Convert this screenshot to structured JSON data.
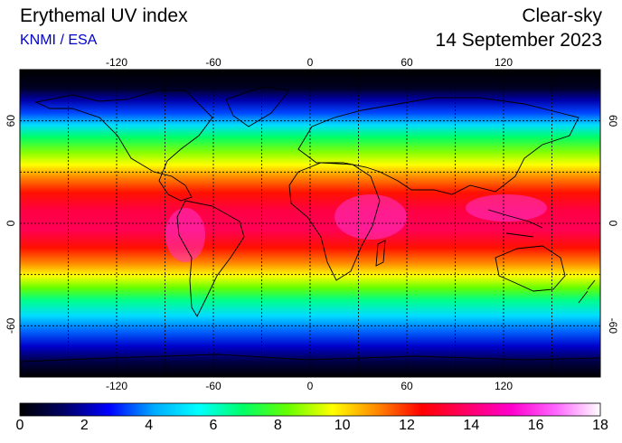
{
  "header": {
    "title": "Erythemal UV index",
    "subtitle": "KNMI / ESA",
    "subtitle_color": "#0000cc",
    "mode": "Clear-sky",
    "date": "14 September 2023"
  },
  "map": {
    "projection": "equirectangular",
    "lon_range": [
      -180,
      180
    ],
    "lat_range": [
      -90,
      90
    ],
    "lon_ticks": [
      "-120",
      "-60",
      "0",
      "60",
      "120"
    ],
    "lat_ticks": [
      "60",
      "0",
      "-60"
    ],
    "grid": "dashed every 30 degrees"
  },
  "colorbar": {
    "min": 0,
    "max": 18,
    "labels": [
      "0",
      "2",
      "4",
      "6",
      "8",
      "10",
      "12",
      "14",
      "16",
      "18"
    ],
    "stops": [
      "#000000",
      "#000066",
      "#0000ff",
      "#00aaff",
      "#00ffff",
      "#00ff66",
      "#66ff00",
      "#ffff00",
      "#ff8800",
      "#ff0000",
      "#ff0066",
      "#ff00cc",
      "#ff66ff",
      "#ffffff"
    ]
  }
}
